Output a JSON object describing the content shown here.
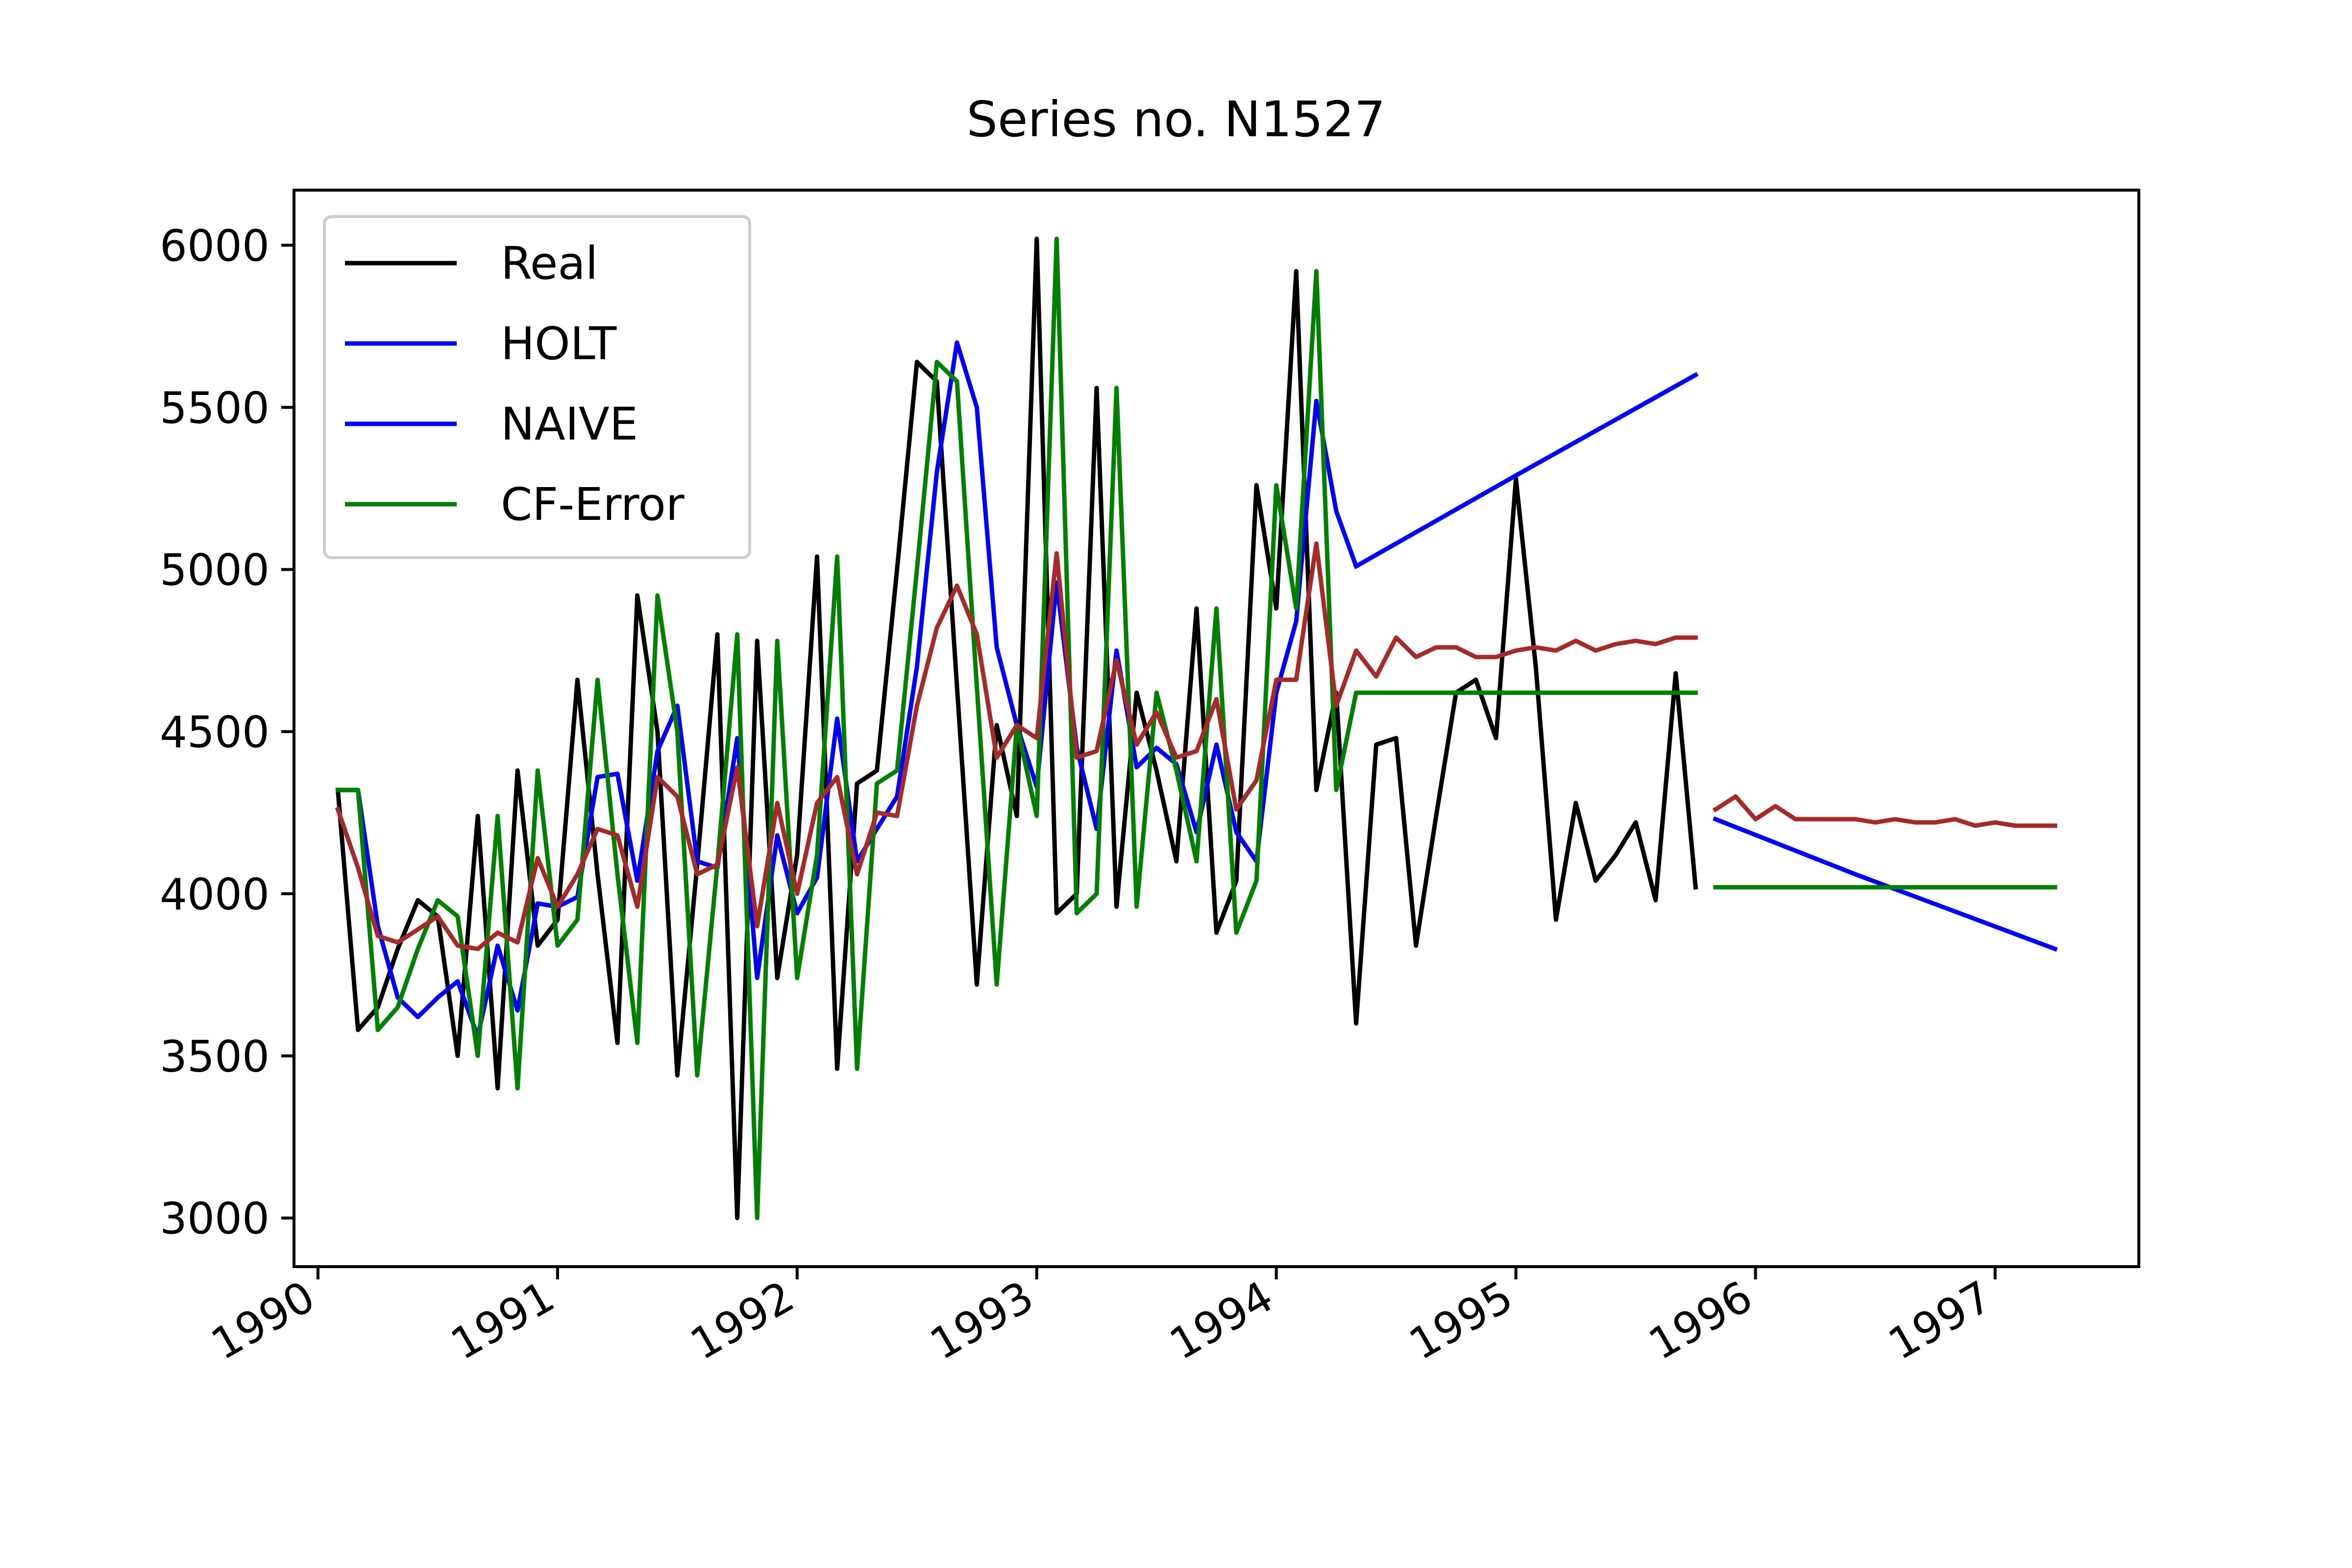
{
  "chart_data": {
    "type": "line",
    "title": "Series no. N1527",
    "xlabel": "",
    "ylabel": "",
    "xlim": [
      1989.9,
      1997.6
    ],
    "ylim": [
      2850,
      6170
    ],
    "x_ticks": [
      1990,
      1991,
      1992,
      1993,
      1994,
      1995,
      1996,
      1997
    ],
    "x_tick_labels": [
      "1990",
      "1991",
      "1992",
      "1993",
      "1994",
      "1995",
      "1996",
      "1997"
    ],
    "y_ticks": [
      3000,
      3500,
      4000,
      4500,
      5000,
      5500,
      6000
    ],
    "y_tick_labels": [
      "3000",
      "3500",
      "4000",
      "4500",
      "5000",
      "5500",
      "6000"
    ],
    "grid": false,
    "legend_position": "upper-left",
    "legend": [
      {
        "label": "Real",
        "color": "#000000"
      },
      {
        "label": "HOLT",
        "color": "#0000ff"
      },
      {
        "label": "NAIVE",
        "color": "#0000ff"
      },
      {
        "label": "CF-Error",
        "color": "#008000"
      }
    ],
    "series": [
      {
        "name": "Real",
        "color": "#000000",
        "points": [
          [
            1990.083,
            4320
          ],
          [
            1990.167,
            3580
          ],
          [
            1990.25,
            3650
          ],
          [
            1990.333,
            3830
          ],
          [
            1990.417,
            3980
          ],
          [
            1990.5,
            3930
          ],
          [
            1990.583,
            3500
          ],
          [
            1990.667,
            4240
          ],
          [
            1990.75,
            3400
          ],
          [
            1990.833,
            4380
          ],
          [
            1990.917,
            3840
          ],
          [
            1991.0,
            3920
          ],
          [
            1991.083,
            4660
          ],
          [
            1991.167,
            4060
          ],
          [
            1991.25,
            3540
          ],
          [
            1991.333,
            4920
          ],
          [
            1991.417,
            4500
          ],
          [
            1991.5,
            3440
          ],
          [
            1991.583,
            4090
          ],
          [
            1991.667,
            4800
          ],
          [
            1991.75,
            3000
          ],
          [
            1991.833,
            4780
          ],
          [
            1991.917,
            3740
          ],
          [
            1992.0,
            4120
          ],
          [
            1992.083,
            5040
          ],
          [
            1992.167,
            3460
          ],
          [
            1992.25,
            4340
          ],
          [
            1992.333,
            4380
          ],
          [
            1992.417,
            5000
          ],
          [
            1992.5,
            5640
          ],
          [
            1992.583,
            5580
          ],
          [
            1992.667,
            4640
          ],
          [
            1992.75,
            3720
          ],
          [
            1992.833,
            4520
          ],
          [
            1992.917,
            4240
          ],
          [
            1993.0,
            6020
          ],
          [
            1993.083,
            3940
          ],
          [
            1993.167,
            4000
          ],
          [
            1993.25,
            5560
          ],
          [
            1993.333,
            3960
          ],
          [
            1993.417,
            4620
          ],
          [
            1993.5,
            4380
          ],
          [
            1993.583,
            4100
          ],
          [
            1993.667,
            4880
          ],
          [
            1993.75,
            3880
          ],
          [
            1993.833,
            4040
          ],
          [
            1993.917,
            5260
          ],
          [
            1994.0,
            4880
          ],
          [
            1994.083,
            5920
          ],
          [
            1994.167,
            4320
          ],
          [
            1994.25,
            4620
          ],
          [
            1994.333,
            3600
          ],
          [
            1994.417,
            4460
          ],
          [
            1994.5,
            4480
          ],
          [
            1994.583,
            3840
          ],
          [
            1994.667,
            4240
          ],
          [
            1994.75,
            4620
          ],
          [
            1994.833,
            4660
          ],
          [
            1994.917,
            4480
          ],
          [
            1995.0,
            5280
          ],
          [
            1995.083,
            4700
          ],
          [
            1995.167,
            3920
          ],
          [
            1995.25,
            4280
          ],
          [
            1995.333,
            4040
          ],
          [
            1995.417,
            4120
          ],
          [
            1995.5,
            4220
          ],
          [
            1995.583,
            3980
          ],
          [
            1995.667,
            4680
          ],
          [
            1995.75,
            4020
          ]
        ]
      },
      {
        "name": "HOLT",
        "color": "#0000ff",
        "points": [
          [
            1994.333,
            5010
          ],
          [
            1995.0,
            5290
          ],
          [
            1995.75,
            5600
          ]
        ]
      },
      {
        "name": "NAIVE",
        "color": "#0000ff",
        "points": [
          [
            1990.083,
            4320
          ],
          [
            1990.167,
            4320
          ],
          [
            1990.25,
            3900
          ],
          [
            1990.333,
            3680
          ],
          [
            1990.417,
            3620
          ],
          [
            1990.5,
            3680
          ],
          [
            1990.583,
            3730
          ],
          [
            1990.667,
            3560
          ],
          [
            1990.75,
            3840
          ],
          [
            1990.833,
            3640
          ],
          [
            1990.917,
            3970
          ],
          [
            1991.0,
            3960
          ],
          [
            1991.083,
            3990
          ],
          [
            1991.167,
            4360
          ],
          [
            1991.25,
            4370
          ],
          [
            1991.333,
            4040
          ],
          [
            1991.417,
            4440
          ],
          [
            1991.5,
            4580
          ],
          [
            1991.583,
            4100
          ],
          [
            1991.667,
            4080
          ],
          [
            1991.75,
            4480
          ],
          [
            1991.833,
            3740
          ],
          [
            1991.917,
            4180
          ],
          [
            1992.0,
            3940
          ],
          [
            1992.083,
            4050
          ],
          [
            1992.167,
            4540
          ],
          [
            1992.25,
            4100
          ],
          [
            1992.333,
            4200
          ],
          [
            1992.417,
            4300
          ],
          [
            1992.5,
            4700
          ],
          [
            1992.583,
            5300
          ],
          [
            1992.667,
            5700
          ],
          [
            1992.75,
            5500
          ],
          [
            1992.833,
            4760
          ],
          [
            1992.917,
            4520
          ],
          [
            1993.0,
            4330
          ],
          [
            1993.083,
            4960
          ],
          [
            1993.167,
            4450
          ],
          [
            1993.25,
            4200
          ],
          [
            1993.333,
            4750
          ],
          [
            1993.417,
            4390
          ],
          [
            1993.5,
            4450
          ],
          [
            1993.583,
            4400
          ],
          [
            1993.667,
            4190
          ],
          [
            1993.75,
            4460
          ],
          [
            1993.833,
            4190
          ],
          [
            1993.917,
            4100
          ],
          [
            1994.0,
            4620
          ],
          [
            1994.083,
            4840
          ],
          [
            1994.167,
            5520
          ],
          [
            1994.25,
            5180
          ],
          [
            1994.333,
            5010
          ]
        ]
      },
      {
        "name": "",
        "color": "#0000ff",
        "points": [
          [
            1995.833,
            4230
          ],
          [
            1996.417,
            4060
          ],
          [
            1997.25,
            3830
          ]
        ]
      },
      {
        "name": "CF-Error",
        "color": "#008000",
        "points": [
          [
            1990.083,
            4320
          ],
          [
            1990.167,
            4320
          ],
          [
            1990.25,
            3580
          ],
          [
            1990.333,
            3650
          ],
          [
            1990.417,
            3830
          ],
          [
            1990.5,
            3980
          ],
          [
            1990.583,
            3930
          ],
          [
            1990.667,
            3500
          ],
          [
            1990.75,
            4240
          ],
          [
            1990.833,
            3400
          ],
          [
            1990.917,
            4380
          ],
          [
            1991.0,
            3840
          ],
          [
            1991.083,
            3920
          ],
          [
            1991.167,
            4660
          ],
          [
            1991.25,
            4060
          ],
          [
            1991.333,
            3540
          ],
          [
            1991.417,
            4920
          ],
          [
            1991.5,
            4500
          ],
          [
            1991.583,
            3440
          ],
          [
            1991.667,
            4090
          ],
          [
            1991.75,
            4800
          ],
          [
            1991.833,
            3000
          ],
          [
            1991.917,
            4780
          ],
          [
            1992.0,
            3740
          ],
          [
            1992.083,
            4120
          ],
          [
            1992.167,
            5040
          ],
          [
            1992.25,
            3460
          ],
          [
            1992.333,
            4340
          ],
          [
            1992.417,
            4380
          ],
          [
            1992.5,
            5000
          ],
          [
            1992.583,
            5640
          ],
          [
            1992.667,
            5580
          ],
          [
            1992.75,
            4640
          ],
          [
            1992.833,
            3720
          ],
          [
            1992.917,
            4520
          ],
          [
            1993.0,
            4240
          ],
          [
            1993.083,
            6020
          ],
          [
            1993.167,
            3940
          ],
          [
            1993.25,
            4000
          ],
          [
            1993.333,
            5560
          ],
          [
            1993.417,
            3960
          ],
          [
            1993.5,
            4620
          ],
          [
            1993.583,
            4380
          ],
          [
            1993.667,
            4100
          ],
          [
            1993.75,
            4880
          ],
          [
            1993.833,
            3880
          ],
          [
            1993.917,
            4040
          ],
          [
            1994.0,
            5260
          ],
          [
            1994.083,
            4880
          ],
          [
            1994.167,
            5920
          ],
          [
            1994.25,
            4320
          ],
          [
            1994.333,
            4620
          ],
          [
            1995.75,
            4620
          ]
        ]
      },
      {
        "name": "",
        "color": "#008000",
        "points": [
          [
            1995.833,
            4020
          ],
          [
            1997.25,
            4020
          ]
        ]
      },
      {
        "name": "",
        "color": "#a52a2a",
        "points": [
          [
            1990.083,
            4260
          ],
          [
            1990.167,
            4080
          ],
          [
            1990.25,
            3870
          ],
          [
            1990.333,
            3850
          ],
          [
            1990.417,
            3890
          ],
          [
            1990.5,
            3930
          ],
          [
            1990.583,
            3840
          ],
          [
            1990.667,
            3830
          ],
          [
            1990.75,
            3880
          ],
          [
            1990.833,
            3850
          ],
          [
            1990.917,
            4110
          ],
          [
            1991.0,
            3960
          ],
          [
            1991.083,
            4060
          ],
          [
            1991.167,
            4200
          ],
          [
            1991.25,
            4180
          ],
          [
            1991.333,
            3960
          ],
          [
            1991.417,
            4360
          ],
          [
            1991.5,
            4300
          ],
          [
            1991.583,
            4060
          ],
          [
            1991.667,
            4090
          ],
          [
            1991.75,
            4390
          ],
          [
            1991.833,
            3900
          ],
          [
            1991.917,
            4280
          ],
          [
            1992.0,
            4000
          ],
          [
            1992.083,
            4280
          ],
          [
            1992.167,
            4360
          ],
          [
            1992.25,
            4060
          ],
          [
            1992.333,
            4250
          ],
          [
            1992.417,
            4240
          ],
          [
            1992.5,
            4580
          ],
          [
            1992.583,
            4820
          ],
          [
            1992.667,
            4950
          ],
          [
            1992.75,
            4800
          ],
          [
            1992.833,
            4420
          ],
          [
            1992.917,
            4520
          ],
          [
            1993.0,
            4480
          ],
          [
            1993.083,
            5050
          ],
          [
            1993.167,
            4420
          ],
          [
            1993.25,
            4440
          ],
          [
            1993.333,
            4720
          ],
          [
            1993.417,
            4460
          ],
          [
            1993.5,
            4560
          ],
          [
            1993.583,
            4420
          ],
          [
            1993.667,
            4440
          ],
          [
            1993.75,
            4600
          ],
          [
            1993.833,
            4260
          ],
          [
            1993.917,
            4350
          ],
          [
            1994.0,
            4660
          ],
          [
            1994.083,
            4660
          ],
          [
            1994.167,
            5080
          ],
          [
            1994.25,
            4580
          ],
          [
            1994.333,
            4750
          ],
          [
            1994.417,
            4670
          ],
          [
            1994.5,
            4790
          ],
          [
            1994.583,
            4730
          ],
          [
            1994.667,
            4760
          ],
          [
            1994.75,
            4760
          ],
          [
            1994.833,
            4730
          ],
          [
            1994.917,
            4730
          ],
          [
            1995.0,
            4750
          ],
          [
            1995.083,
            4760
          ],
          [
            1995.167,
            4750
          ],
          [
            1995.25,
            4780
          ],
          [
            1995.333,
            4750
          ],
          [
            1995.417,
            4770
          ],
          [
            1995.5,
            4780
          ],
          [
            1995.583,
            4770
          ],
          [
            1995.667,
            4790
          ],
          [
            1995.75,
            4790
          ]
        ]
      },
      {
        "name": "",
        "color": "#a52a2a",
        "points": [
          [
            1995.833,
            4260
          ],
          [
            1995.917,
            4300
          ],
          [
            1996.0,
            4230
          ],
          [
            1996.083,
            4270
          ],
          [
            1996.167,
            4230
          ],
          [
            1996.25,
            4230
          ],
          [
            1996.333,
            4230
          ],
          [
            1996.417,
            4230
          ],
          [
            1996.5,
            4220
          ],
          [
            1996.583,
            4230
          ],
          [
            1996.667,
            4220
          ],
          [
            1996.75,
            4220
          ],
          [
            1996.833,
            4230
          ],
          [
            1996.917,
            4210
          ],
          [
            1997.0,
            4220
          ],
          [
            1997.083,
            4210
          ],
          [
            1997.167,
            4210
          ],
          [
            1997.25,
            4210
          ]
        ]
      }
    ]
  }
}
